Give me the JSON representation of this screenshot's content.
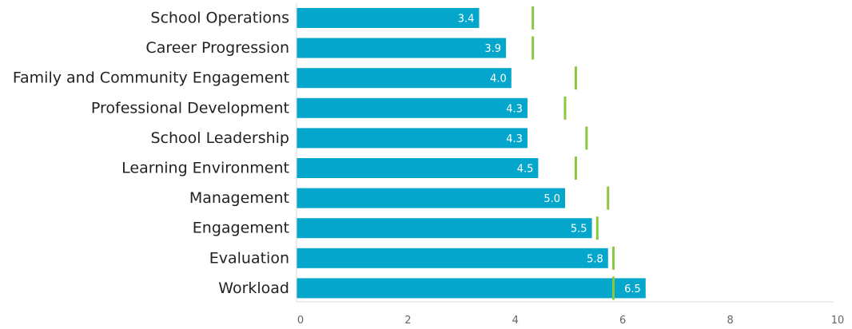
{
  "chart_data": {
    "type": "bar",
    "orientation": "horizontal",
    "title": "",
    "xlabel": "",
    "ylabel": "",
    "categories": [
      "School Operations",
      "Career Progression",
      "Family and Community Engagement",
      "Professional Development",
      "School Leadership",
      "Learning Environment",
      "Management",
      "Engagement",
      "Evaluation",
      "Workload"
    ],
    "series": [
      {
        "type": "bar",
        "values": [
          3.4,
          3.9,
          4.0,
          4.3,
          4.3,
          4.5,
          5.0,
          5.5,
          5.8,
          6.5
        ],
        "labels": [
          "3.4",
          "3.9",
          "4.0",
          "4.3",
          "4.3",
          "4.5",
          "5.0",
          "5.5",
          "5.8",
          "6.5"
        ],
        "color": "#05A6CB"
      },
      {
        "type": "marker",
        "values": [
          4.4,
          4.4,
          5.2,
          5.0,
          5.4,
          5.2,
          5.8,
          5.6,
          5.9,
          5.9
        ],
        "color": "#8CC63F"
      }
    ],
    "xlim": [
      0,
      10
    ],
    "xticks": [
      "0",
      "2",
      "4",
      "6",
      "8",
      "10"
    ],
    "grid": false,
    "legend": "none"
  }
}
